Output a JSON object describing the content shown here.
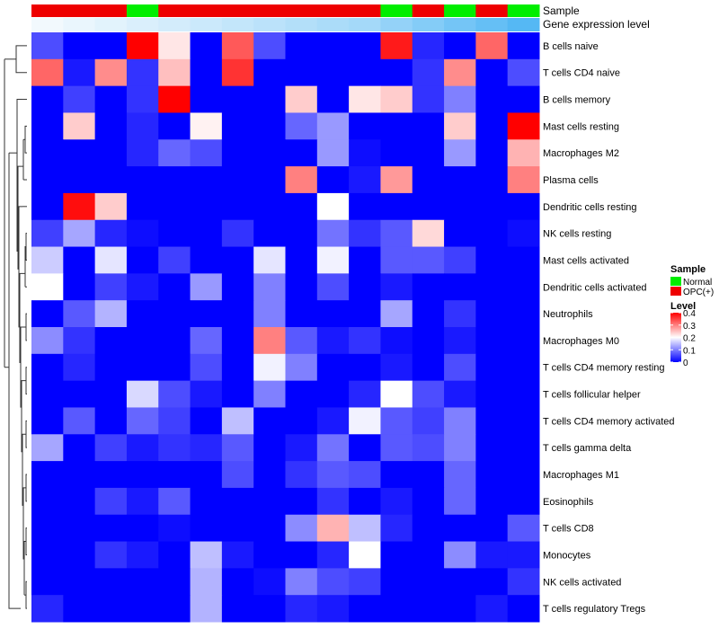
{
  "chart_data": {
    "type": "heatmap",
    "title": "",
    "annotation_tracks": [
      {
        "name": "Sample",
        "values": [
          "OPC(+)",
          "OPC(+)",
          "OPC(+)",
          "Normal",
          "OPC(+)",
          "OPC(+)",
          "OPC(+)",
          "OPC(+)",
          "OPC(+)",
          "OPC(+)",
          "OPC(+)",
          "Normal",
          "OPC(+)",
          "Normal",
          "OPC(+)",
          "Normal"
        ]
      },
      {
        "name": "Gene expression level",
        "values": [
          0,
          0.05,
          0.1,
          0.15,
          0.2,
          0.25,
          0.3,
          0.35,
          0.4,
          0.45,
          0.5,
          0.6,
          0.7,
          0.8,
          0.9,
          1.0
        ]
      }
    ],
    "rows": [
      "B cells naive",
      "T cells CD4 naive",
      "B cells memory",
      "Mast cells resting",
      "Macrophages M2",
      "Plasma cells",
      "Dendritic cells resting",
      "NK cells resting",
      "Mast cells activated",
      "Dendritic cells activated",
      "Neutrophils",
      "Macrophages M0",
      "T cells CD4 memory resting",
      "T cells follicular helper",
      "T cells CD4 memory activated",
      "T cells gamma delta",
      "Macrophages M1",
      "Eosinophils",
      "T cells CD8",
      "Monocytes",
      "NK cells activated",
      "T cells regulatory  Tregs"
    ],
    "values": [
      [
        0.06,
        0,
        0,
        0.4,
        0.22,
        0,
        0.33,
        0.06,
        0,
        0,
        0,
        0.38,
        0.03,
        0,
        0.32,
        0
      ],
      [
        0.32,
        0.02,
        0.29,
        0.04,
        0.25,
        0,
        0.36,
        0,
        0,
        0,
        0,
        0,
        0.04,
        0.29,
        0,
        0.06
      ],
      [
        0,
        0.05,
        0,
        0.04,
        0.4,
        0,
        0,
        0,
        0.24,
        0,
        0.22,
        0.24,
        0.04,
        0.1,
        0,
        0
      ],
      [
        0,
        0.24,
        0,
        0.03,
        0,
        0.21,
        0,
        0,
        0.08,
        0.12,
        0,
        0,
        0,
        0.24,
        0,
        0.4
      ],
      [
        0,
        0,
        0,
        0.03,
        0.08,
        0.06,
        0,
        0,
        0,
        0.12,
        0.01,
        0,
        0,
        0.12,
        0,
        0.26
      ],
      [
        0,
        0,
        0,
        0,
        0,
        0,
        0,
        0,
        0.3,
        0,
        0.02,
        0.28,
        0,
        0,
        0,
        0.3
      ],
      [
        0,
        0.39,
        0.24,
        0,
        0,
        0,
        0,
        0,
        0,
        0.2,
        0,
        0,
        0,
        0,
        0,
        0
      ],
      [
        0.05,
        0.13,
        0.03,
        0.01,
        0,
        0,
        0.04,
        0,
        0,
        0.09,
        0.04,
        0.07,
        0.23,
        0,
        0,
        0.01
      ],
      [
        0.16,
        0,
        0.18,
        0,
        0.05,
        0,
        0,
        0.18,
        0,
        0.19,
        0,
        0.07,
        0.07,
        0.05,
        0,
        0
      ],
      [
        0.2,
        0,
        0.05,
        0.02,
        0,
        0.12,
        0,
        0.1,
        0,
        0.06,
        0,
        0.02,
        0,
        0,
        0,
        0
      ],
      [
        0,
        0.07,
        0.14,
        0,
        0,
        0,
        0,
        0.1,
        0,
        0,
        0,
        0.13,
        0,
        0.04,
        0,
        0
      ],
      [
        0.11,
        0.04,
        0,
        0,
        0,
        0.08,
        0,
        0.3,
        0.07,
        0.02,
        0.04,
        0.01,
        0,
        0.02,
        0,
        0
      ],
      [
        0,
        0.03,
        0,
        0,
        0,
        0.06,
        0,
        0.19,
        0.1,
        0,
        0,
        0.02,
        0,
        0.06,
        0,
        0
      ],
      [
        0,
        0,
        0,
        0.17,
        0.06,
        0.02,
        0,
        0.1,
        0,
        0,
        0.03,
        0.2,
        0.06,
        0.02,
        0,
        0
      ],
      [
        0,
        0.07,
        0,
        0.08,
        0.05,
        0,
        0.15,
        0,
        0,
        0.02,
        0.19,
        0.07,
        0.05,
        0.1,
        0,
        0
      ],
      [
        0.13,
        0,
        0.05,
        0.02,
        0.04,
        0.03,
        0.07,
        0,
        0.02,
        0.09,
        0,
        0.07,
        0.06,
        0.1,
        0,
        0
      ],
      [
        0,
        0,
        0,
        0,
        0,
        0,
        0.06,
        0,
        0.04,
        0.07,
        0.06,
        0,
        0,
        0.08,
        0,
        0
      ],
      [
        0,
        0,
        0.05,
        0.02,
        0.07,
        0,
        0,
        0,
        0,
        0.04,
        0,
        0.02,
        0,
        0.08,
        0,
        0
      ],
      [
        0,
        0,
        0,
        0,
        0.01,
        0,
        0,
        0,
        0.11,
        0.26,
        0.15,
        0.03,
        0,
        0,
        0,
        0.07
      ],
      [
        0,
        0,
        0.04,
        0.02,
        0,
        0.15,
        0.02,
        0,
        0,
        0.03,
        0.2,
        0,
        0,
        0.11,
        0.02,
        0.02
      ],
      [
        0,
        0,
        0,
        0,
        0,
        0.14,
        0,
        0.01,
        0.1,
        0.06,
        0.05,
        0,
        0,
        0,
        0,
        0.04
      ],
      [
        0.03,
        0,
        0,
        0,
        0,
        0.14,
        0,
        0,
        0.03,
        0.02,
        0,
        0,
        0,
        0,
        0.02,
        0
      ]
    ],
    "legend": {
      "sample_title": "Sample",
      "sample_entries": [
        {
          "label": "Normal",
          "color": "#00ee00"
        },
        {
          "label": "OPC(+)",
          "color": "#ee0000"
        }
      ],
      "level_title": "Level",
      "level_ticks": [
        "0.4",
        "0.3",
        "0.2",
        "0.1",
        "0"
      ],
      "level_range": [
        0,
        0.4
      ],
      "placement": "right"
    },
    "colors": {
      "low": "#0000ff",
      "mid": "#ffffff",
      "high": "#ff0000",
      "normal": "#00ee00",
      "opc": "#ee0000",
      "gene_low": "#f2f9fd",
      "gene_high": "#55b8f4"
    },
    "row_dendrogram": true
  }
}
